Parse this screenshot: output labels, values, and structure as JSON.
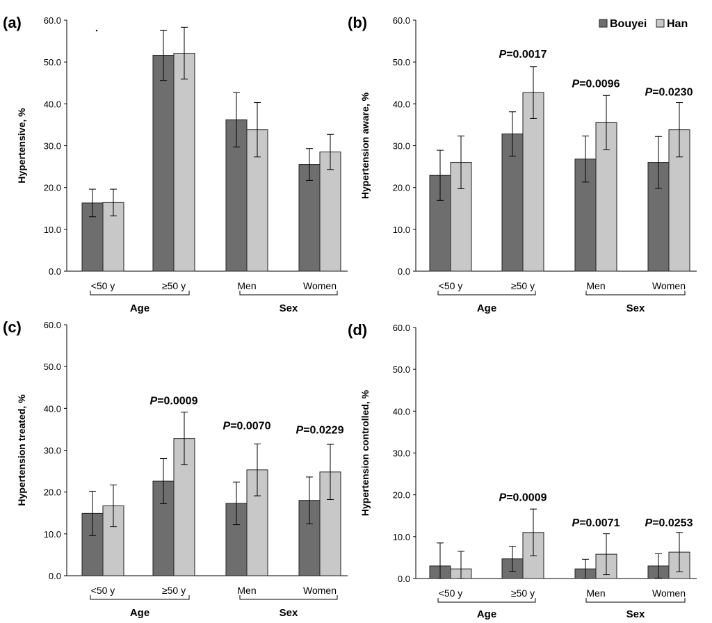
{
  "legend": {
    "items": [
      {
        "name": "Bouyei",
        "color": "#6e6e6e"
      },
      {
        "name": "Han",
        "color": "#c8c8c8"
      }
    ]
  },
  "chart_data": [
    {
      "type": "bar",
      "panel": "(a)",
      "ylabel": "Hypertensive, %",
      "ylim": [
        0,
        60
      ],
      "yticks": [
        "0.0",
        "10.0",
        "20.0",
        "30.0",
        "40.0",
        "50.0",
        "60.0"
      ],
      "categories": [
        "<50 y",
        "≥50 y",
        "Men",
        "Women"
      ],
      "groups": [
        {
          "label": "Age",
          "categories": [
            0,
            1
          ]
        },
        {
          "label": "Sex",
          "categories": [
            2,
            3
          ]
        }
      ],
      "series": [
        {
          "name": "Bouyei",
          "values": [
            16.3,
            51.6,
            36.2,
            25.5
          ],
          "error": [
            3.3,
            6.0,
            6.5,
            3.8
          ]
        },
        {
          "name": "Han",
          "values": [
            16.4,
            52.1,
            33.8,
            28.5
          ],
          "error": [
            3.2,
            6.2,
            6.5,
            4.2
          ]
        }
      ],
      "annotations": []
    },
    {
      "type": "bar",
      "panel": "(b)",
      "ylabel": "Hypertension aware, %",
      "ylim": [
        0,
        60
      ],
      "yticks": [
        "0.0",
        "10.0",
        "20.0",
        "30.0",
        "40.0",
        "50.0",
        "60.0"
      ],
      "categories": [
        "<50 y",
        "≥50 y",
        "Men",
        "Women"
      ],
      "groups": [
        {
          "label": "Age",
          "categories": [
            0,
            1
          ]
        },
        {
          "label": "Sex",
          "categories": [
            2,
            3
          ]
        }
      ],
      "series": [
        {
          "name": "Bouyei",
          "values": [
            22.9,
            32.8,
            26.8,
            26.0
          ],
          "error": [
            6.0,
            5.3,
            5.5,
            6.2
          ]
        },
        {
          "name": "Han",
          "values": [
            26.0,
            42.7,
            35.5,
            33.8
          ],
          "error": [
            6.3,
            6.2,
            6.5,
            6.5
          ]
        }
      ],
      "annotations": [
        {
          "category": 1,
          "italic": "P",
          "text": "=0.0017",
          "y": 51.0
        },
        {
          "category": 2,
          "italic": "P",
          "text": "=0.0096",
          "y": 44.0
        },
        {
          "category": 3,
          "italic": "P",
          "text": "=0.0230",
          "y": 42.0
        }
      ]
    },
    {
      "type": "bar",
      "panel": "(c)",
      "ylabel": "Hypertension treated, %",
      "ylim": [
        0,
        60
      ],
      "yticks": [
        "0.0",
        "10.0",
        "20.0",
        "30.0",
        "40.0",
        "50.0",
        "60.0"
      ],
      "categories": [
        "<50 y",
        "≥50 y",
        "Men",
        "Women"
      ],
      "groups": [
        {
          "label": "Age",
          "categories": [
            0,
            1
          ]
        },
        {
          "label": "Sex",
          "categories": [
            2,
            3
          ]
        }
      ],
      "series": [
        {
          "name": "Bouyei",
          "values": [
            14.9,
            22.6,
            17.3,
            18.0
          ],
          "error": [
            5.3,
            5.4,
            5.1,
            5.6
          ]
        },
        {
          "name": "Han",
          "values": [
            16.7,
            32.8,
            25.3,
            24.8
          ],
          "error": [
            5.0,
            6.3,
            6.2,
            6.6
          ]
        }
      ],
      "annotations": [
        {
          "category": 1,
          "italic": "P",
          "text": "=0.0009",
          "y": 41.0
        },
        {
          "category": 2,
          "italic": "P",
          "text": "=0.0070",
          "y": 35.0
        },
        {
          "category": 3,
          "italic": "P",
          "text": "=0.0229",
          "y": 34.0
        }
      ]
    },
    {
      "type": "bar",
      "panel": "(d)",
      "ylabel": "Hypertension controlled, %",
      "ylim": [
        0,
        60
      ],
      "yticks": [
        "0.0",
        "10.0",
        "20.0",
        "30.0",
        "40.0",
        "50.0",
        "60.0"
      ],
      "categories": [
        "<50 y",
        "≥50 y",
        "Men",
        "Women"
      ],
      "groups": [
        {
          "label": "Age",
          "categories": [
            0,
            1
          ]
        },
        {
          "label": "Sex",
          "categories": [
            2,
            3
          ]
        }
      ],
      "series": [
        {
          "name": "Bouyei",
          "values": [
            3.0,
            4.7,
            2.3,
            3.0
          ],
          "error": [
            5.5,
            3.0,
            2.3,
            2.9
          ]
        },
        {
          "name": "Han",
          "values": [
            2.3,
            11.0,
            5.8,
            6.3
          ],
          "error": [
            4.2,
            5.6,
            4.9,
            4.7
          ]
        }
      ],
      "annotations": [
        {
          "category": 1,
          "italic": "P",
          "text": "=0.0009",
          "y": 18.5
        },
        {
          "category": 2,
          "italic": "P",
          "text": "=0.0071",
          "y": 12.5
        },
        {
          "category": 3,
          "italic": "P",
          "text": "=0.0253",
          "y": 12.5
        }
      ]
    }
  ]
}
